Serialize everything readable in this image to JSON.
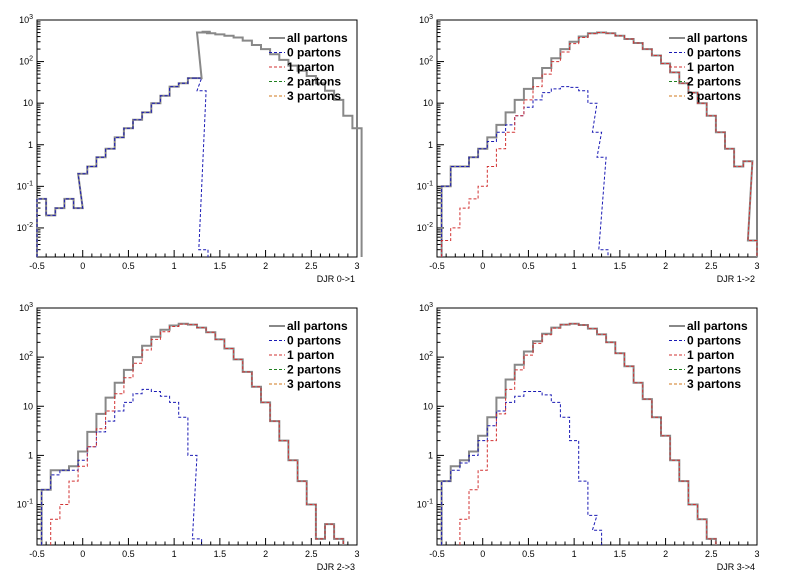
{
  "chart_data": [
    {
      "type": "line",
      "scale": "log-y",
      "xlabel": "DJR 0->1",
      "xlim": [
        -0.5,
        3
      ],
      "ylim": [
        0.002,
        1000
      ],
      "x_ticks": [
        "-0.5",
        "0",
        "0.5",
        "1",
        "1.5",
        "2",
        "2.5",
        "3"
      ],
      "y_ticks": [
        "10^-2",
        "10^-1",
        "1",
        "10",
        "10^2",
        "10^3"
      ],
      "legend": [
        "all partons",
        "0 partons",
        "1 parton",
        "2 partons",
        "3 partons"
      ],
      "series": [
        {
          "name": "all partons",
          "x": [
            -0.45,
            -0.35,
            -0.25,
            -0.15,
            -0.05,
            0.0,
            0.1,
            0.2,
            0.3,
            0.4,
            0.5,
            0.6,
            0.7,
            0.8,
            0.9,
            1.0,
            1.1,
            1.2,
            1.25,
            1.3,
            1.35,
            1.4,
            1.5,
            1.6,
            1.7,
            1.8,
            1.9,
            2.0,
            2.1,
            2.2,
            2.3,
            2.4,
            2.5,
            2.6,
            2.7,
            2.8,
            2.9,
            3.0
          ],
          "y": [
            0.05,
            0.02,
            0.03,
            0.05,
            0.03,
            0.2,
            0.3,
            0.5,
            0.8,
            1.5,
            2.5,
            4,
            6,
            10,
            15,
            25,
            30,
            40,
            40,
            500,
            520,
            480,
            450,
            420,
            380,
            320,
            250,
            200,
            150,
            110,
            80,
            60,
            45,
            30,
            20,
            12,
            5,
            2.5
          ]
        },
        {
          "name": "0 partons",
          "x": [
            -0.45,
            -0.35,
            -0.25,
            -0.15,
            -0.05,
            0.0,
            0.1,
            0.2,
            0.3,
            0.4,
            0.5,
            0.6,
            0.7,
            0.8,
            0.9,
            1.0,
            1.1,
            1.2,
            1.25,
            1.3,
            1.32
          ],
          "y": [
            0.05,
            0.02,
            0.03,
            0.05,
            0.03,
            0.2,
            0.3,
            0.5,
            0.8,
            1.5,
            2.5,
            4,
            6,
            10,
            15,
            25,
            30,
            40,
            40,
            20,
            0.003
          ]
        }
      ]
    },
    {
      "type": "line",
      "scale": "log-y",
      "xlabel": "DJR 1->2",
      "xlim": [
        -0.5,
        3
      ],
      "ylim": [
        0.002,
        1000
      ],
      "x_ticks": [
        "-0.5",
        "0",
        "0.5",
        "1",
        "1.5",
        "2",
        "2.5",
        "3"
      ],
      "y_ticks": [
        "10^-2",
        "10^-1",
        "1",
        "10",
        "10^2",
        "10^3"
      ],
      "legend": [
        "all partons",
        "0 partons",
        "1 parton",
        "2 partons",
        "3 partons"
      ],
      "series": [
        {
          "name": "all partons",
          "x": [
            -0.4,
            -0.3,
            -0.2,
            -0.1,
            0.0,
            0.1,
            0.2,
            0.3,
            0.4,
            0.5,
            0.6,
            0.7,
            0.8,
            0.9,
            1.0,
            1.1,
            1.2,
            1.3,
            1.4,
            1.5,
            1.6,
            1.7,
            1.8,
            1.9,
            2.0,
            2.1,
            2.2,
            2.3,
            2.4,
            2.5,
            2.6,
            2.7,
            2.8,
            2.9,
            2.95
          ],
          "y": [
            0.1,
            0.3,
            0.3,
            0.5,
            0.8,
            1.5,
            3,
            6,
            12,
            22,
            40,
            70,
            120,
            200,
            300,
            400,
            480,
            500,
            480,
            420,
            350,
            280,
            200,
            140,
            90,
            55,
            30,
            18,
            10,
            5,
            2,
            0.8,
            0.3,
            0.4,
            0.005
          ]
        },
        {
          "name": "0 partons",
          "x": [
            -0.4,
            -0.3,
            -0.2,
            -0.1,
            0.0,
            0.1,
            0.2,
            0.3,
            0.4,
            0.5,
            0.6,
            0.7,
            0.8,
            0.9,
            1.0,
            1.1,
            1.2,
            1.25,
            1.3,
            1.32
          ],
          "y": [
            0.1,
            0.3,
            0.3,
            0.5,
            0.8,
            1.2,
            2,
            3,
            5,
            8,
            12,
            18,
            22,
            25,
            24,
            20,
            10,
            2,
            0.5,
            0.003
          ]
        },
        {
          "name": "1 parton",
          "x": [
            -0.4,
            -0.3,
            -0.2,
            -0.1,
            0.0,
            0.1,
            0.2,
            0.3,
            0.4,
            0.5,
            0.6,
            0.7,
            0.8,
            0.9,
            1.0,
            1.1,
            1.2,
            1.3,
            1.4,
            1.5,
            1.6,
            1.7,
            1.8,
            1.9,
            2.0,
            2.1,
            2.2,
            2.3,
            2.4,
            2.5,
            2.6,
            2.7,
            2.8,
            2.9,
            2.95
          ],
          "y": [
            0.005,
            0.01,
            0.03,
            0.05,
            0.1,
            0.3,
            0.8,
            2,
            5,
            12,
            25,
            50,
            100,
            170,
            270,
            380,
            470,
            500,
            480,
            420,
            350,
            280,
            200,
            140,
            90,
            55,
            30,
            18,
            10,
            5,
            2,
            0.8,
            0.3,
            0.4,
            0.005
          ]
        }
      ]
    },
    {
      "type": "line",
      "scale": "log-y",
      "xlabel": "DJR 2->3",
      "xlim": [
        -0.5,
        3
      ],
      "ylim": [
        0.015,
        1000
      ],
      "x_ticks": [
        "-0.5",
        "0",
        "0.5",
        "1",
        "1.5",
        "2",
        "2.5",
        "3"
      ],
      "y_ticks": [
        "10^-1",
        "1",
        "10",
        "10^2",
        "10^3"
      ],
      "legend": [
        "all partons",
        "0 partons",
        "1 parton",
        "2 partons",
        "3 partons"
      ],
      "series": [
        {
          "name": "all partons",
          "x": [
            -0.4,
            -0.3,
            -0.2,
            -0.1,
            0.0,
            0.1,
            0.2,
            0.3,
            0.4,
            0.5,
            0.6,
            0.7,
            0.8,
            0.9,
            1.0,
            1.1,
            1.2,
            1.3,
            1.4,
            1.5,
            1.6,
            1.7,
            1.8,
            1.9,
            2.0,
            2.1,
            2.2,
            2.3,
            2.4,
            2.5,
            2.6,
            2.7,
            2.8
          ],
          "y": [
            0.2,
            0.5,
            0.5,
            0.6,
            1.2,
            3,
            7,
            15,
            30,
            55,
            100,
            170,
            260,
            360,
            440,
            480,
            460,
            400,
            320,
            230,
            150,
            90,
            50,
            25,
            12,
            5,
            2,
            0.8,
            0.3,
            0.1,
            0.02,
            0.04,
            0.02
          ]
        },
        {
          "name": "0 partons",
          "x": [
            -0.4,
            -0.3,
            -0.2,
            -0.1,
            0.0,
            0.1,
            0.2,
            0.3,
            0.4,
            0.5,
            0.6,
            0.7,
            0.8,
            0.9,
            1.0,
            1.1,
            1.2,
            1.25
          ],
          "y": [
            0.2,
            0.4,
            0.5,
            0.5,
            0.8,
            1.5,
            3,
            5,
            8,
            12,
            18,
            22,
            20,
            16,
            12,
            6,
            1,
            0.02
          ]
        },
        {
          "name": "1 parton",
          "x": [
            -0.3,
            -0.2,
            -0.1,
            0.0,
            0.1,
            0.2,
            0.3,
            0.4,
            0.5,
            0.6,
            0.7,
            0.8,
            0.9,
            1.0,
            1.1,
            1.2,
            1.3,
            1.4,
            1.5,
            1.6,
            1.7,
            1.8,
            1.9,
            2.0,
            2.1,
            2.2,
            2.3,
            2.4,
            2.5,
            2.6,
            2.7,
            2.8
          ],
          "y": [
            0.05,
            0.1,
            0.3,
            0.6,
            1.5,
            3.5,
            8,
            18,
            38,
            75,
            140,
            230,
            330,
            420,
            470,
            460,
            400,
            320,
            230,
            150,
            90,
            50,
            25,
            12,
            5,
            2,
            0.8,
            0.3,
            0.1,
            0.02,
            0.04,
            0.02
          ]
        }
      ]
    },
    {
      "type": "line",
      "scale": "log-y",
      "xlabel": "DJR 3->4",
      "xlim": [
        -0.5,
        3
      ],
      "ylim": [
        0.015,
        1000
      ],
      "x_ticks": [
        "-0.5",
        "0",
        "0.5",
        "1",
        "1.5",
        "2",
        "2.5",
        "3"
      ],
      "y_ticks": [
        "10^-1",
        "1",
        "10",
        "10^2",
        "10^3"
      ],
      "legend": [
        "all partons",
        "0 partons",
        "1 parton",
        "2 partons",
        "3 partons"
      ],
      "series": [
        {
          "name": "all partons",
          "x": [
            -0.4,
            -0.3,
            -0.2,
            -0.1,
            0.0,
            0.1,
            0.2,
            0.3,
            0.4,
            0.5,
            0.6,
            0.7,
            0.8,
            0.9,
            1.0,
            1.1,
            1.2,
            1.3,
            1.4,
            1.5,
            1.6,
            1.7,
            1.8,
            1.9,
            2.0,
            2.1,
            2.2,
            2.3,
            2.4,
            2.5
          ],
          "y": [
            0.3,
            0.6,
            0.8,
            1.2,
            2.5,
            6,
            15,
            35,
            70,
            130,
            210,
            300,
            400,
            460,
            480,
            450,
            380,
            290,
            200,
            120,
            65,
            30,
            14,
            6,
            2.5,
            0.8,
            0.3,
            0.1,
            0.05,
            0.02
          ]
        },
        {
          "name": "0 partons",
          "x": [
            -0.4,
            -0.3,
            -0.2,
            -0.1,
            0.0,
            0.1,
            0.2,
            0.3,
            0.4,
            0.5,
            0.6,
            0.7,
            0.8,
            0.9,
            1.0,
            1.1,
            1.2,
            1.25
          ],
          "y": [
            0.3,
            0.5,
            0.7,
            1,
            2,
            4,
            8,
            12,
            16,
            20,
            20,
            17,
            12,
            6,
            2,
            0.3,
            0.06,
            0.03
          ]
        },
        {
          "name": "1 parton",
          "x": [
            -0.2,
            -0.1,
            0.0,
            0.1,
            0.2,
            0.3,
            0.4,
            0.5,
            0.6,
            0.7,
            0.8,
            0.9,
            1.0,
            1.1,
            1.2,
            1.3,
            1.4,
            1.5,
            1.6,
            1.7,
            1.8,
            1.9,
            2.0,
            2.1,
            2.2,
            2.3,
            2.4,
            2.5
          ],
          "y": [
            0.05,
            0.2,
            0.5,
            2,
            7,
            22,
            55,
            110,
            190,
            285,
            390,
            455,
            478,
            450,
            380,
            290,
            200,
            120,
            65,
            30,
            14,
            6,
            2.5,
            0.8,
            0.3,
            0.1,
            0.05,
            0.02
          ]
        }
      ]
    }
  ],
  "colors": {
    "all partons": "#888888",
    "0 partons": "#1a1ab4",
    "1 parton": "#d23232",
    "2 partons": "#208020",
    "3 partons": "#d27a1e",
    "frame": "#000000"
  }
}
